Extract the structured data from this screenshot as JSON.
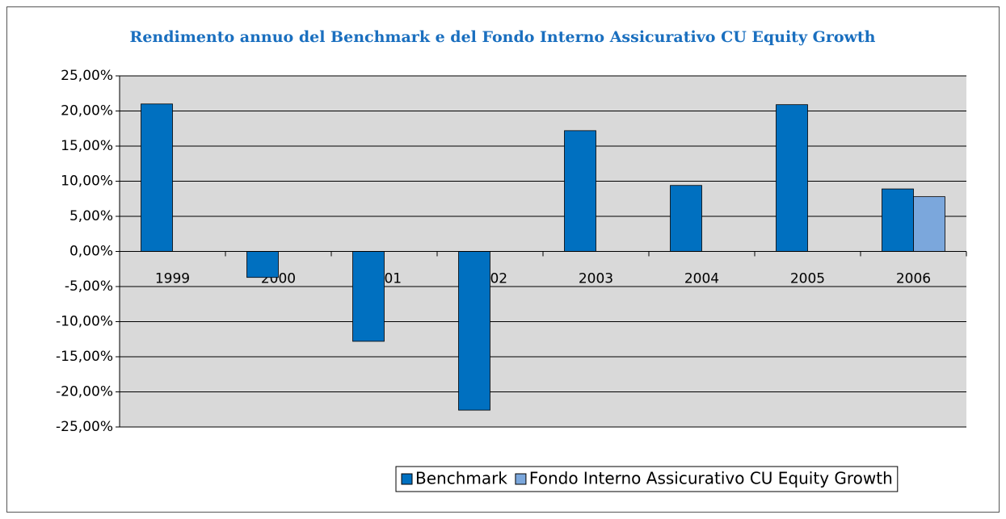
{
  "chart_data": {
    "type": "bar",
    "title": "Rendimento annuo del Benchmark e del Fondo Interno Assicurativo CU Equity Growth",
    "categories": [
      "1999",
      "2000",
      "2001",
      "2002",
      "2003",
      "2004",
      "2005",
      "2006"
    ],
    "series": [
      {
        "name": "Benchmark",
        "color": "#0070c0",
        "values": [
          21.0,
          -3.7,
          -12.8,
          -22.6,
          17.2,
          9.4,
          20.9,
          8.9
        ]
      },
      {
        "name": "Fondo Interno Assicurativo CU Equity Growth",
        "color": "#7ba7dc",
        "values": [
          null,
          null,
          null,
          null,
          null,
          null,
          null,
          7.8
        ]
      }
    ],
    "ylim": [
      -25,
      25
    ],
    "yticks": [
      {
        "value": 25,
        "label": "25,00%"
      },
      {
        "value": 20,
        "label": "20,00%"
      },
      {
        "value": 15,
        "label": "15,00%"
      },
      {
        "value": 10,
        "label": "10,00%"
      },
      {
        "value": 5,
        "label": "5,00%"
      },
      {
        "value": 0,
        "label": "0,00%"
      },
      {
        "value": -5,
        "label": "-5,00%"
      },
      {
        "value": -10,
        "label": "-10,00%"
      },
      {
        "value": -15,
        "label": "-15,00%"
      },
      {
        "value": -20,
        "label": "-20,00%"
      },
      {
        "value": -25,
        "label": "-25,00%"
      }
    ],
    "grid": true,
    "legend": "bottom"
  }
}
